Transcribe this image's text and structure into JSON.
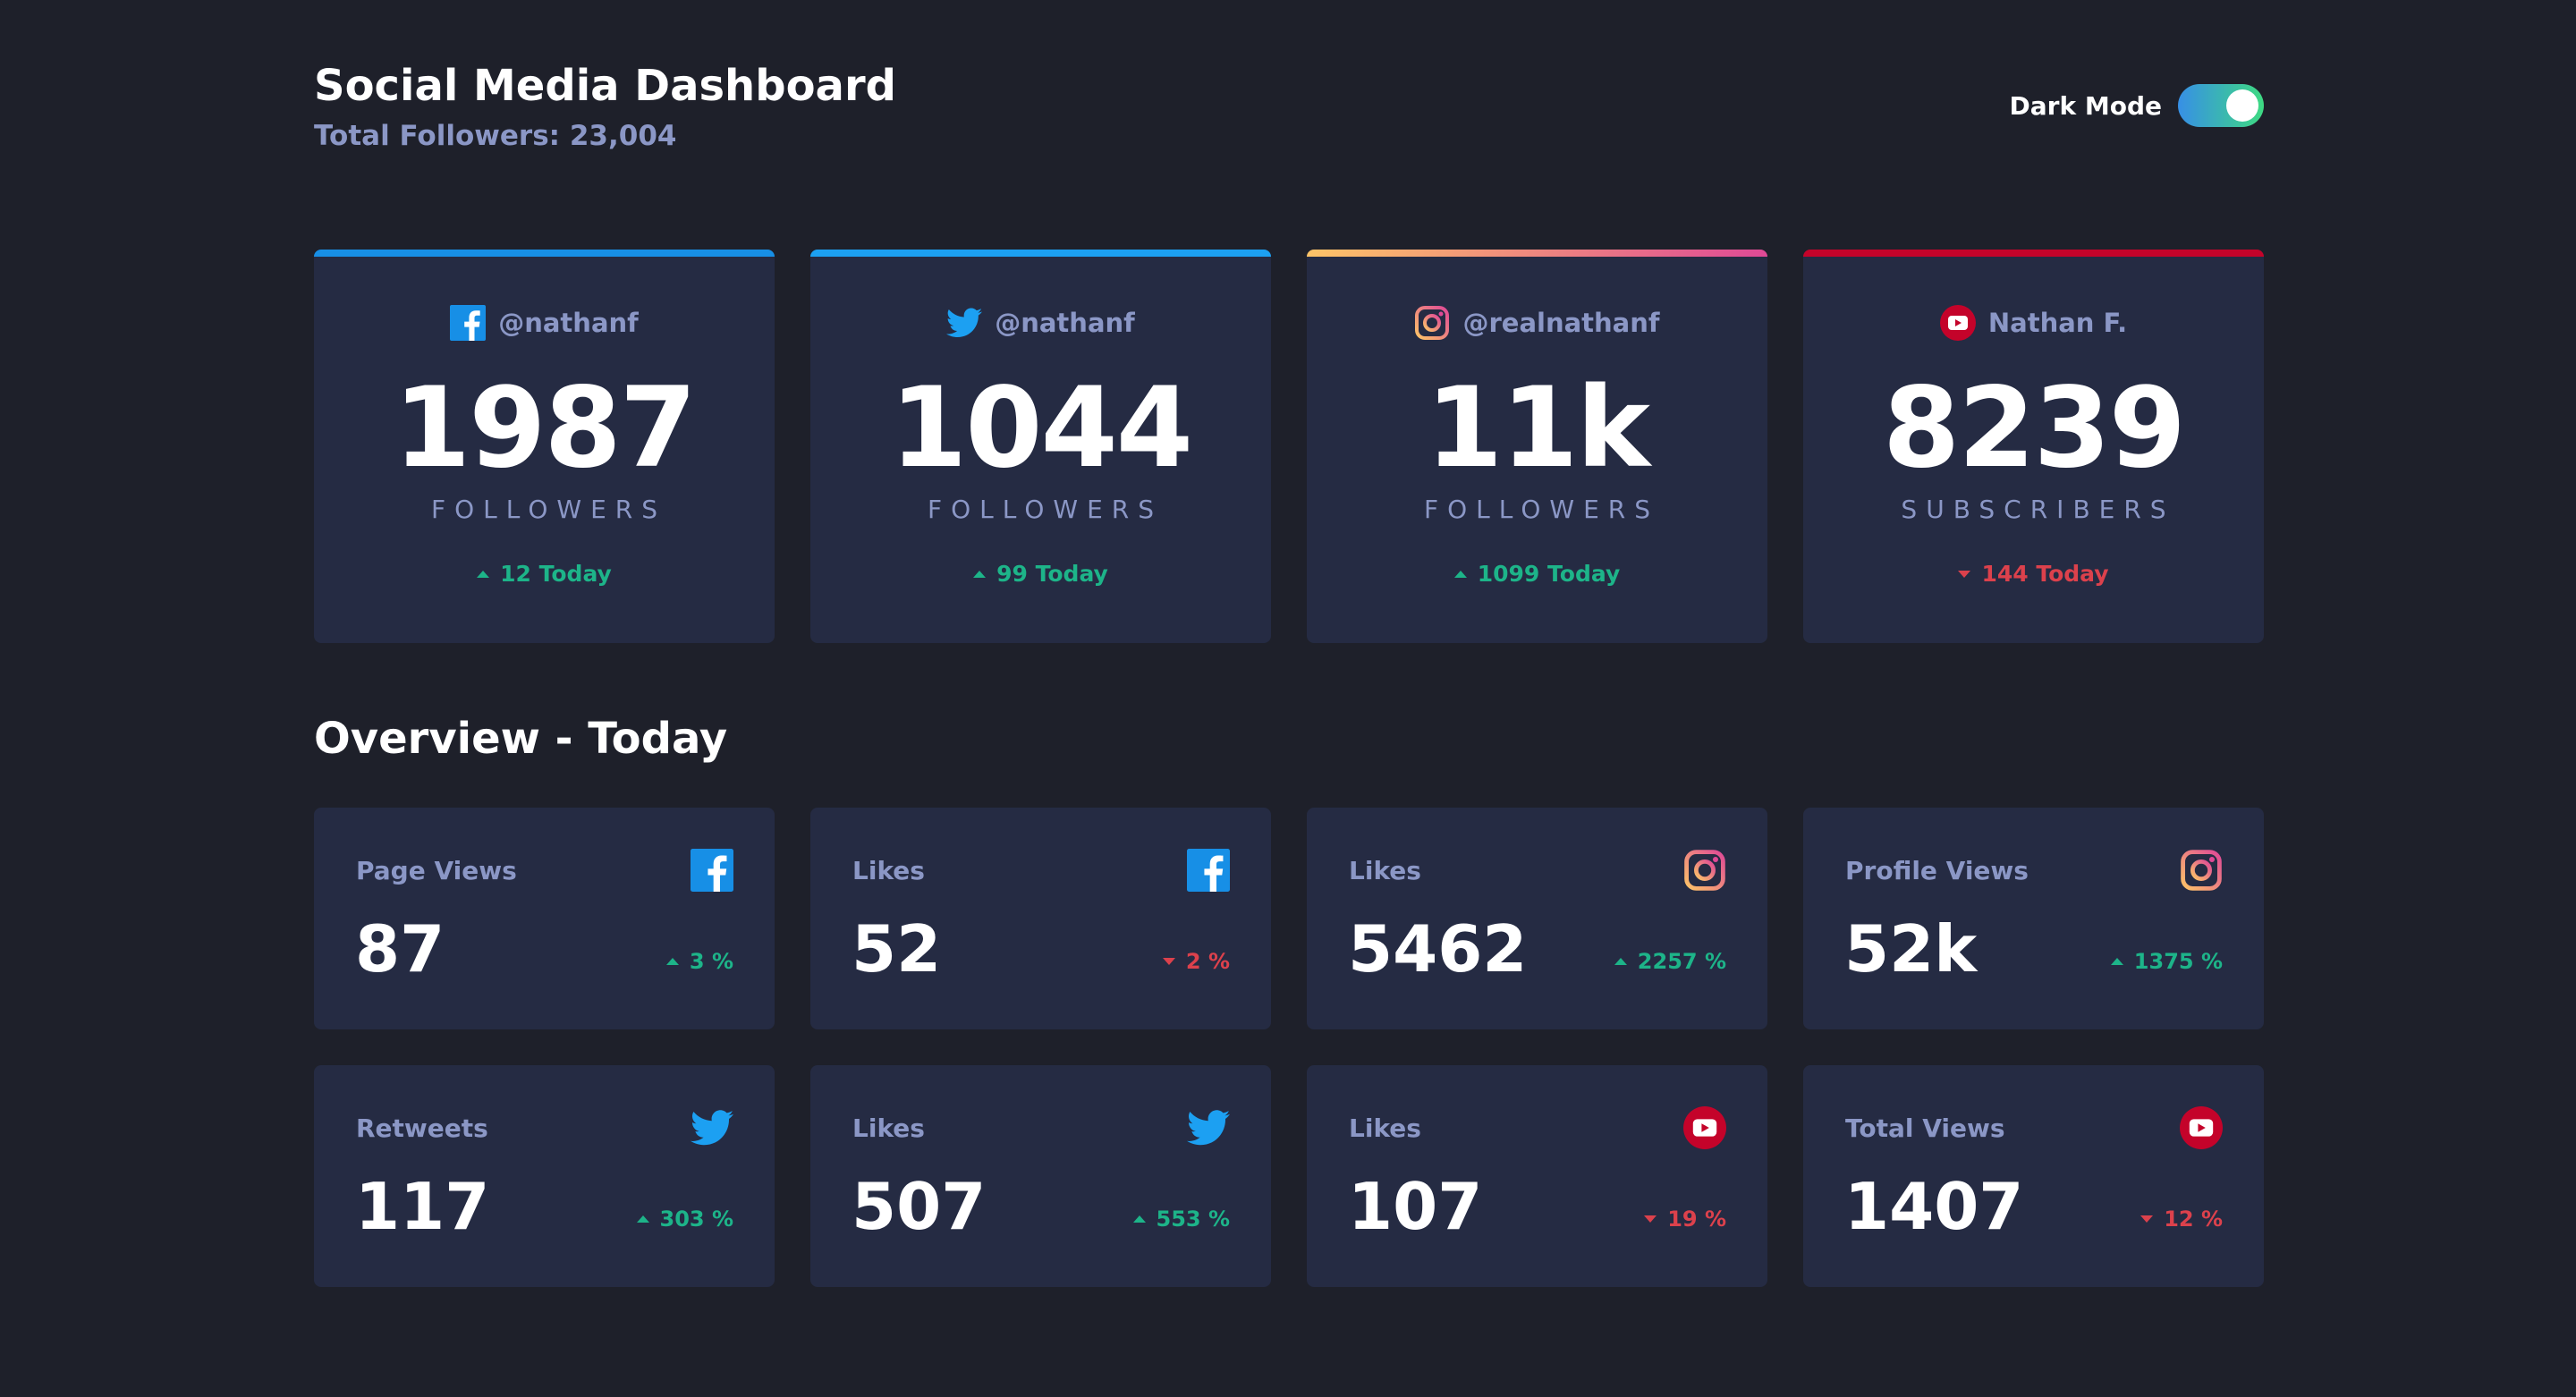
{
  "header": {
    "title": "Social Media Dashboard",
    "total_followers": "Total Followers: 23,004",
    "dark_mode_label": "Dark Mode",
    "dark_mode_on": true
  },
  "colors": {
    "background": "#1e202a",
    "card": "#252b43",
    "muted_text": "#8b97c6",
    "up": "#1db489",
    "down": "#dc414c",
    "facebook": "#178fe6",
    "twitter": "#1ca0f2",
    "youtube": "#c4032a"
  },
  "cards": [
    {
      "platform": "facebook",
      "icon": "facebook-icon",
      "handle": "@nathanf",
      "count": "1987",
      "label": "FOLLOWERS",
      "change": "12 Today",
      "direction": "up"
    },
    {
      "platform": "twitter",
      "icon": "twitter-icon",
      "handle": "@nathanf",
      "count": "1044",
      "label": "FOLLOWERS",
      "change": "99 Today",
      "direction": "up"
    },
    {
      "platform": "instagram",
      "icon": "instagram-icon",
      "handle": "@realnathanf",
      "count": "11k",
      "label": "FOLLOWERS",
      "change": "1099 Today",
      "direction": "up"
    },
    {
      "platform": "youtube",
      "icon": "youtube-icon",
      "handle": "Nathan F.",
      "count": "8239",
      "label": "SUBSCRIBERS",
      "change": "144 Today",
      "direction": "down"
    }
  ],
  "overview": {
    "title": "Overview - Today",
    "items": [
      {
        "label": "Page Views",
        "icon": "facebook-icon",
        "value": "87",
        "change": "3 %",
        "direction": "up"
      },
      {
        "label": "Likes",
        "icon": "facebook-icon",
        "value": "52",
        "change": "2 %",
        "direction": "down"
      },
      {
        "label": "Likes",
        "icon": "instagram-icon",
        "value": "5462",
        "change": "2257 %",
        "direction": "up"
      },
      {
        "label": "Profile Views",
        "icon": "instagram-icon",
        "value": "52k",
        "change": "1375 %",
        "direction": "up"
      },
      {
        "label": "Retweets",
        "icon": "twitter-icon",
        "value": "117",
        "change": "303 %",
        "direction": "up"
      },
      {
        "label": "Likes",
        "icon": "twitter-icon",
        "value": "507",
        "change": "553 %",
        "direction": "up"
      },
      {
        "label": "Likes",
        "icon": "youtube-icon",
        "value": "107",
        "change": "19 %",
        "direction": "down"
      },
      {
        "label": "Total Views",
        "icon": "youtube-icon",
        "value": "1407",
        "change": "12 %",
        "direction": "down"
      }
    ]
  }
}
